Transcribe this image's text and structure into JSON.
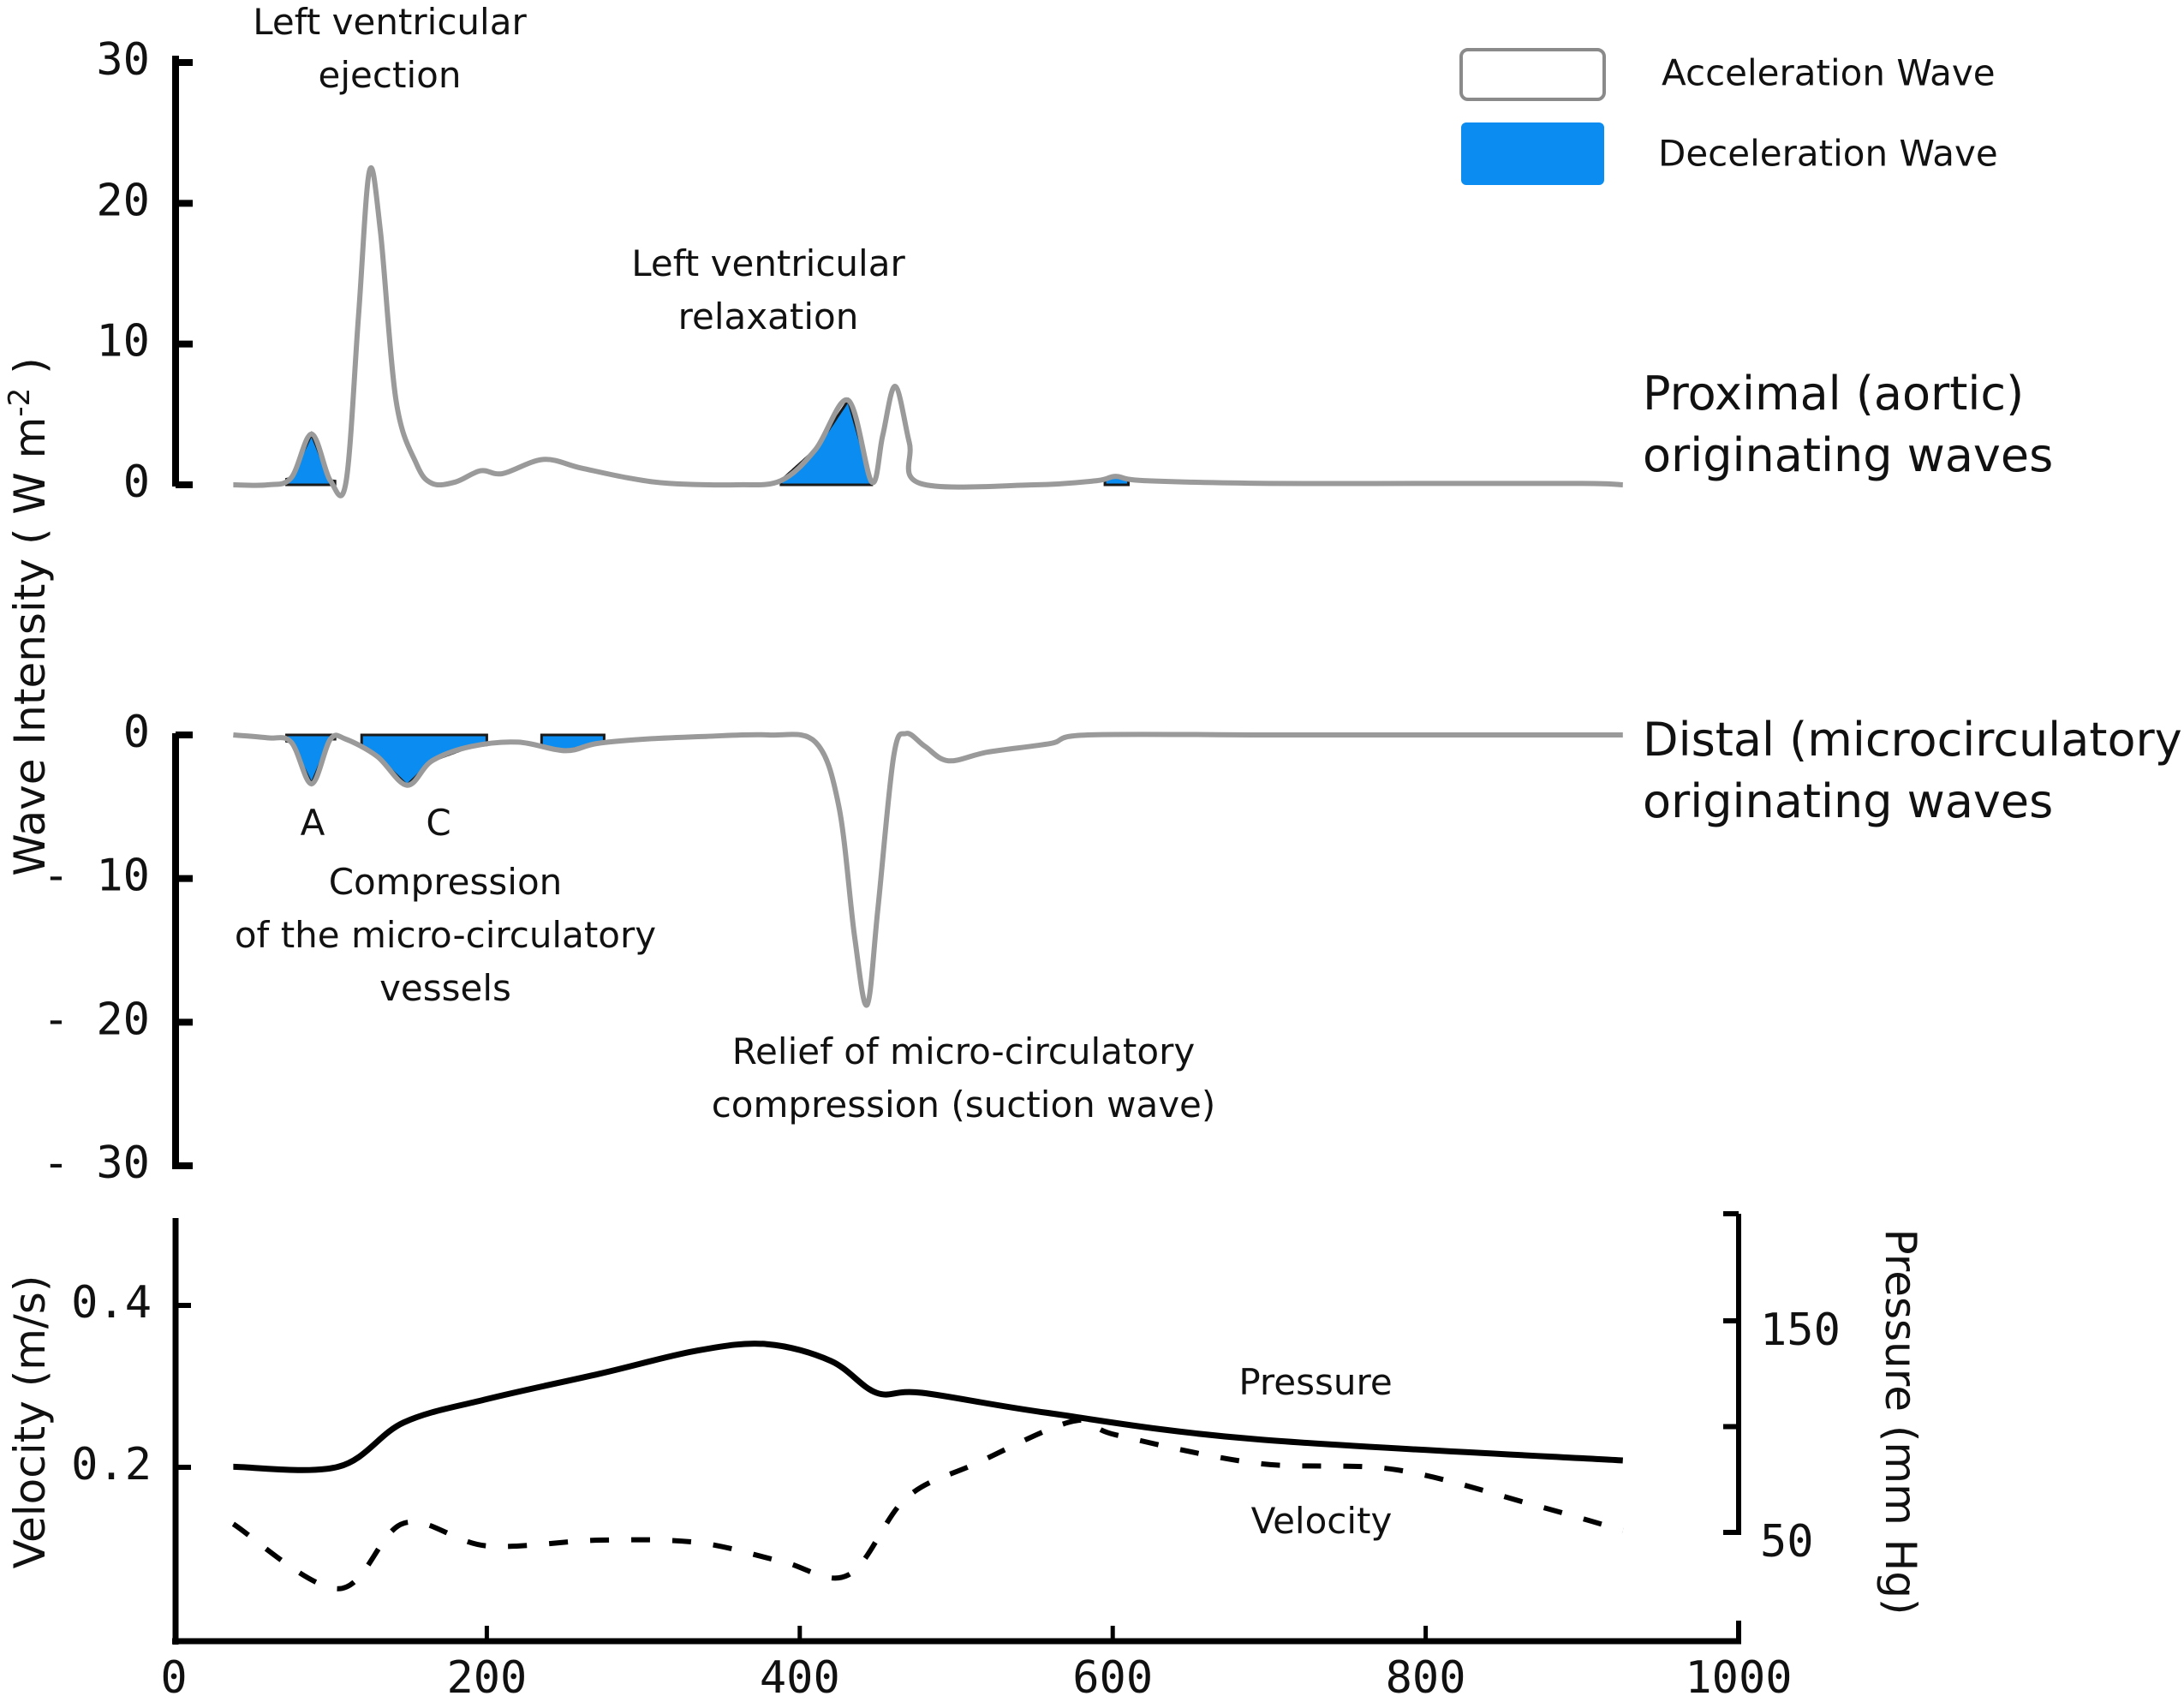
{
  "chart_data": [
    {
      "panel": "wave-intensity",
      "type": "line",
      "ylabel": "Wave Intensity ( W m-2 )",
      "ylabel_parts": {
        "main": "Wave Intensity",
        "unit_open": "( W m",
        "unit_sup": "-2",
        "unit_close": " )"
      },
      "sub_axes": [
        {
          "name": "proximal",
          "ylim": [
            0,
            30
          ],
          "ticks": [
            0,
            10,
            20,
            30
          ],
          "tick_labels": [
            "0",
            "10",
            "20",
            "30"
          ]
        },
        {
          "name": "distal",
          "ylim": [
            -30,
            0
          ],
          "ticks": [
            0,
            -10,
            -20,
            -30
          ],
          "tick_labels": [
            "0",
            "-10",
            "-20",
            "-30"
          ]
        }
      ],
      "legend": {
        "placement": "top-right",
        "entries": [
          {
            "label": "Acceleration Wave",
            "fill": "#ffffff",
            "stroke": "#888888"
          },
          {
            "label": "Deceleration Wave",
            "fill": "#0a8cf0"
          }
        ]
      },
      "series": [
        {
          "name": "Proximal (aortic) originating waves",
          "label_lines": [
            "Proximal (aortic)",
            "originating waves"
          ],
          "x": [
            38,
            60,
            75,
            88,
            100,
            110,
            118,
            125,
            132,
            142,
            155,
            165,
            180,
            196,
            210,
            236,
            260,
            290,
            317,
            360,
            388,
            410,
            431,
            446,
            453,
            461,
            470,
            477,
            550,
            590,
            602,
            620,
            700,
            800,
            900,
            926
          ],
          "y": [
            0,
            0,
            0.5,
            3.6,
            0.3,
            0.2,
            12,
            22.3,
            18,
            6,
            1.5,
            0.1,
            0.2,
            1.0,
            0.8,
            1.8,
            1.2,
            0.5,
            0.1,
            0,
            0.3,
            2.5,
            6.0,
            0.2,
            3.5,
            7.0,
            3.0,
            0.1,
            0,
            0.3,
            0.6,
            0.3,
            0.1,
            0.1,
            0.1,
            0
          ]
        },
        {
          "name": "Distal (microcirculatory) originating waves",
          "label_lines": [
            "Distal (microcirculatory)",
            "originating waves"
          ],
          "x": [
            38,
            60,
            75,
            88,
            100,
            110,
            130,
            149,
            165,
            190,
            220,
            250,
            270,
            300,
            340,
            380,
            410,
            425,
            435,
            443,
            450,
            460,
            468,
            480,
            495,
            520,
            560,
            584,
            700,
            800,
            926
          ],
          "y": [
            0,
            -0.2,
            -0.5,
            -3.4,
            -0.3,
            -0.3,
            -1.5,
            -3.5,
            -1.8,
            -0.8,
            -0.5,
            -1.1,
            -0.6,
            -0.3,
            -0.1,
            0,
            -0.5,
            -5,
            -14,
            -18.8,
            -12,
            -1.5,
            0.1,
            -0.8,
            -1.8,
            -1.2,
            -0.6,
            0,
            0,
            0,
            0
          ]
        }
      ],
      "deceleration_regions": [
        {
          "series": "proximal",
          "x_range": [
            72,
            103
          ],
          "peak": 3.6
        },
        {
          "series": "proximal",
          "x_range": [
            388,
            446
          ],
          "peak": 6.0
        },
        {
          "series": "proximal",
          "x_range": [
            595,
            610
          ],
          "peak": 0.6
        },
        {
          "series": "distal",
          "x_range": [
            72,
            103
          ],
          "peak": -3.4
        },
        {
          "series": "distal",
          "x_range": [
            120,
            200
          ],
          "peak": -3.5
        },
        {
          "series": "distal",
          "x_range": [
            235,
            275
          ],
          "peak": -1.1
        }
      ],
      "annotations": [
        {
          "text_lines": [
            "Left ventricular",
            "ejection"
          ]
        },
        {
          "text_lines": [
            "Left ventricular",
            "relaxation"
          ]
        },
        {
          "text_lines": [
            "A"
          ]
        },
        {
          "text_lines": [
            "C"
          ]
        },
        {
          "text_lines": [
            "Compression",
            "of the micro-circulatory",
            "vessels"
          ]
        },
        {
          "text_lines": [
            "Relief of micro-circulatory",
            "compression (suction wave)"
          ]
        }
      ]
    },
    {
      "panel": "velocity-pressure",
      "type": "line",
      "xlabel": "",
      "xlim": [
        0,
        1000
      ],
      "x_ticks": [
        0,
        200,
        400,
        600,
        800,
        1000
      ],
      "x_tick_labels": [
        "0",
        "200",
        "400",
        "600",
        "800",
        "1000"
      ],
      "ylabel_left": "Velocity (m/s)",
      "ylim_left_ticks": [
        0.2,
        0.4
      ],
      "ylim_left_tick_labels": [
        "0.2",
        "0.4"
      ],
      "ylabel_right": "Pressure (mm Hg)",
      "ylim_right_ticks": [
        50,
        100,
        150
      ],
      "ylim_right_tick_labels": [
        "50",
        "",
        "150"
      ],
      "series": [
        {
          "name": "Pressure",
          "axis": "right",
          "style": "solid",
          "x": [
            38,
            105,
            147,
            200,
            272,
            335,
            379,
            420,
            449,
            478,
            558,
            692,
            926
          ],
          "y": [
            81,
            81,
            102,
            113,
            125,
            136,
            139,
            131,
            116,
            116,
            106.5,
            94,
            84
          ]
        },
        {
          "name": "Velocity",
          "axis": "left",
          "style": "dashed",
          "x": [
            38,
            105,
            147,
            200,
            272,
            335,
            388,
            431,
            468,
            513,
            575,
            602,
            692,
            781,
            870,
            926
          ],
          "y": [
            0.13,
            0.05,
            0.131,
            0.103,
            0.11,
            0.107,
            0.084,
            0.067,
            0.162,
            0.205,
            0.257,
            0.24,
            0.205,
            0.197,
            0.153,
            0.122
          ]
        }
      ]
    }
  ]
}
